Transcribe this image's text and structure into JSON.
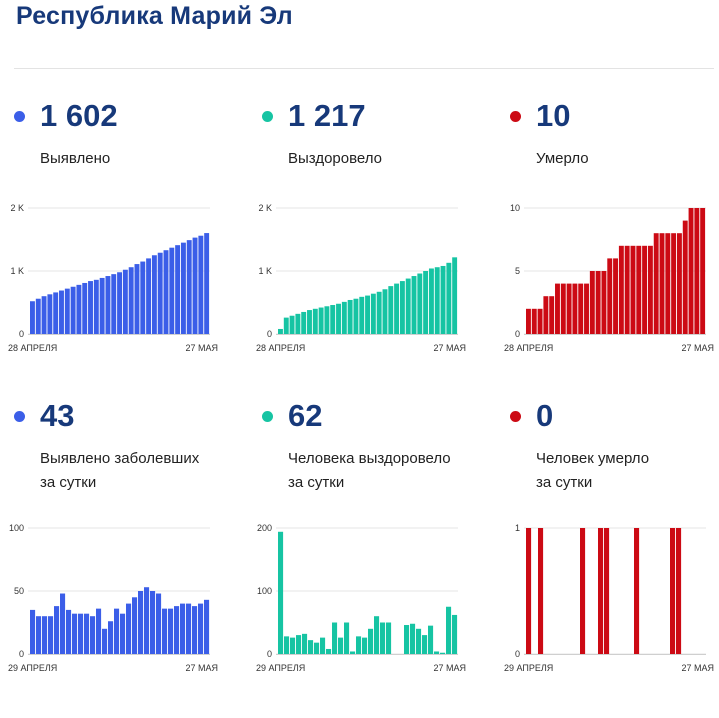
{
  "page": {
    "title": "Республика Марий Эл"
  },
  "colors": {
    "confirmed": "#3b5ee8",
    "recovered": "#16c4a3",
    "deaths": "#cc0a14",
    "title": "#17397a"
  },
  "stats": [
    {
      "value": "1 602",
      "label_lines": [
        "Выявлено"
      ],
      "color_key": "confirmed"
    },
    {
      "value": "1 217",
      "label_lines": [
        "Выздоровело"
      ],
      "color_key": "recovered"
    },
    {
      "value": "10",
      "label_lines": [
        "Умерло"
      ],
      "color_key": "deaths"
    },
    {
      "value": "43",
      "label_lines": [
        "Выявлено заболевших",
        "за сутки"
      ],
      "color_key": "confirmed"
    },
    {
      "value": "62",
      "label_lines": [
        "Человека выздоровело",
        "за сутки"
      ],
      "color_key": "recovered"
    },
    {
      "value": "0",
      "label_lines": [
        "Человек умерло",
        "за сутки"
      ],
      "color_key": "deaths"
    }
  ],
  "chart_data": [
    {
      "type": "bar",
      "title": "Выявлено",
      "color_key": "confirmed",
      "x_start_label": "28 АПРЕЛЯ",
      "x_end_label": "27 МАЯ",
      "ylim": [
        0,
        2000
      ],
      "yticks": [
        {
          "value": 0,
          "label": "0"
        },
        {
          "value": 1000,
          "label": "1 K"
        },
        {
          "value": 2000,
          "label": "2 K"
        }
      ],
      "values": [
        520,
        560,
        600,
        630,
        660,
        690,
        720,
        750,
        780,
        810,
        840,
        860,
        890,
        920,
        950,
        980,
        1020,
        1060,
        1110,
        1150,
        1200,
        1250,
        1290,
        1330,
        1370,
        1410,
        1450,
        1490,
        1530,
        1560,
        1602
      ]
    },
    {
      "type": "bar",
      "title": "Выздоровело",
      "color_key": "recovered",
      "x_start_label": "28 АПРЕЛЯ",
      "x_end_label": "27 МАЯ",
      "ylim": [
        0,
        2000
      ],
      "yticks": [
        {
          "value": 0,
          "label": "0"
        },
        {
          "value": 1000,
          "label": "1 K"
        },
        {
          "value": 2000,
          "label": "2 K"
        }
      ],
      "values": [
        80,
        260,
        290,
        320,
        350,
        380,
        400,
        420,
        440,
        460,
        480,
        510,
        540,
        560,
        590,
        610,
        640,
        670,
        710,
        760,
        800,
        840,
        880,
        920,
        960,
        1000,
        1040,
        1060,
        1080,
        1130,
        1217
      ]
    },
    {
      "type": "bar",
      "title": "Умерло",
      "color_key": "deaths",
      "x_start_label": "28 АПРЕЛЯ",
      "x_end_label": "27 МАЯ",
      "ylim": [
        0,
        10
      ],
      "yticks": [
        {
          "value": 0,
          "label": "0"
        },
        {
          "value": 5,
          "label": "5"
        },
        {
          "value": 10,
          "label": "10"
        }
      ],
      "values": [
        2,
        2,
        2,
        3,
        3,
        4,
        4,
        4,
        4,
        4,
        4,
        5,
        5,
        5,
        6,
        6,
        7,
        7,
        7,
        7,
        7,
        7,
        8,
        8,
        8,
        8,
        8,
        9,
        10,
        10,
        10
      ]
    },
    {
      "type": "bar",
      "title": "Выявлено заболевших за сутки",
      "color_key": "confirmed",
      "x_start_label": "29 АПРЕЛЯ",
      "x_end_label": "27 МАЯ",
      "ylim": [
        0,
        100
      ],
      "yticks": [
        {
          "value": 0,
          "label": "0"
        },
        {
          "value": 50,
          "label": "50"
        },
        {
          "value": 100,
          "label": "100"
        }
      ],
      "values": [
        35,
        30,
        30,
        30,
        38,
        48,
        35,
        32,
        32,
        32,
        30,
        36,
        20,
        26,
        36,
        32,
        40,
        45,
        50,
        53,
        50,
        48,
        36,
        36,
        38,
        40,
        40,
        38,
        40,
        43
      ]
    },
    {
      "type": "bar",
      "title": "Человека выздоровело за сутки",
      "color_key": "recovered",
      "x_start_label": "29 АПРЕЛЯ",
      "x_end_label": "27 МАЯ",
      "ylim": [
        0,
        200
      ],
      "yticks": [
        {
          "value": 0,
          "label": "0"
        },
        {
          "value": 100,
          "label": "100"
        },
        {
          "value": 200,
          "label": "200"
        }
      ],
      "values": [
        194,
        28,
        26,
        30,
        32,
        22,
        18,
        26,
        8,
        50,
        26,
        50,
        4,
        28,
        26,
        40,
        60,
        50,
        50,
        0,
        0,
        46,
        48,
        40,
        30,
        45,
        4,
        2,
        75,
        62
      ]
    },
    {
      "type": "bar",
      "title": "Человек умерло за сутки",
      "color_key": "deaths",
      "x_start_label": "29 АПРЕЛЯ",
      "x_end_label": "27 МАЯ",
      "ylim": [
        0,
        1
      ],
      "yticks": [
        {
          "value": 0,
          "label": "0"
        },
        {
          "value": 1,
          "label": "1"
        }
      ],
      "values": [
        1,
        0,
        1,
        0,
        0,
        0,
        0,
        0,
        0,
        1,
        0,
        0,
        1,
        1,
        0,
        0,
        0,
        0,
        1,
        0,
        0,
        0,
        0,
        0,
        1,
        1,
        0,
        0,
        0,
        0
      ]
    }
  ]
}
